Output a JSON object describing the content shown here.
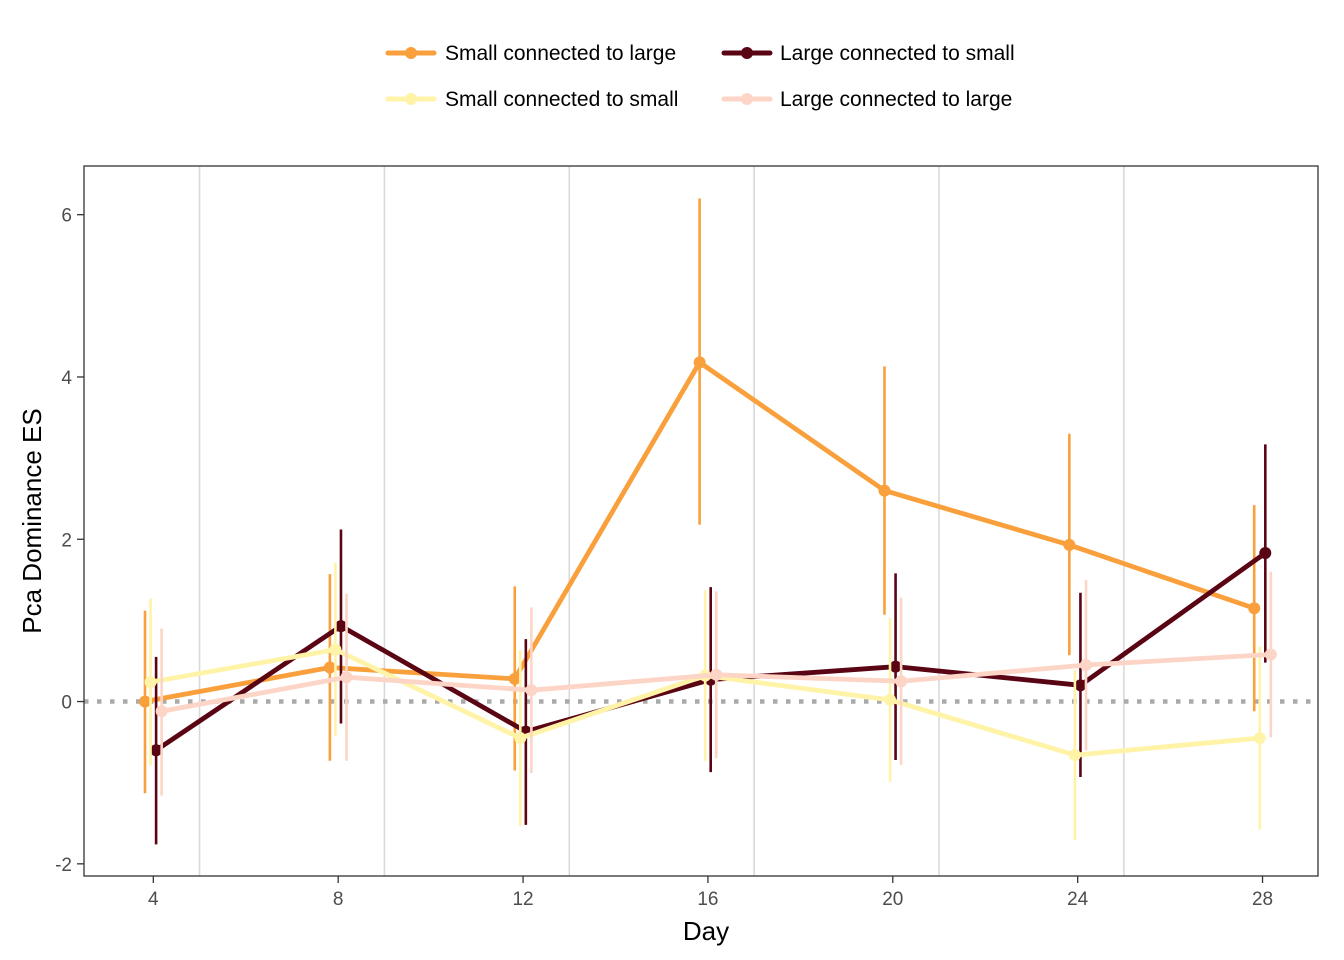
{
  "chart_data": {
    "type": "line",
    "title": "",
    "xlabel": "Day",
    "ylabel": "Pca Dominance ES",
    "x": [
      4,
      8,
      12,
      16,
      20,
      24,
      28
    ],
    "xticks": [
      "4",
      "8",
      "12",
      "16",
      "20",
      "24",
      "28"
    ],
    "yticks": [
      "-2",
      "0",
      "2",
      "4",
      "6"
    ],
    "xlim": [
      2.5,
      29.2
    ],
    "ylim": [
      -2.15,
      6.6
    ],
    "reference_line": 0,
    "vertical_separators": [
      5,
      9,
      13,
      17,
      21,
      25
    ],
    "grid": false,
    "legend_position": "top",
    "series": [
      {
        "name": "Small connected to large",
        "color": "#F9A03C",
        "offset": -0.18,
        "values": [
          0.0,
          0.42,
          0.28,
          4.18,
          2.6,
          1.93,
          1.15
        ],
        "lower": [
          -1.13,
          -0.73,
          -0.85,
          2.18,
          1.07,
          0.57,
          -0.12
        ],
        "upper": [
          1.12,
          1.57,
          1.42,
          6.2,
          4.13,
          3.3,
          2.42
        ]
      },
      {
        "name": "Large connected to small",
        "color": "#5A0514",
        "offset": 0.06,
        "values": [
          -0.6,
          0.93,
          -0.37,
          0.27,
          0.43,
          0.2,
          1.83
        ],
        "lower": [
          -1.76,
          -0.27,
          -1.52,
          -0.87,
          -0.72,
          -0.93,
          0.48
        ],
        "upper": [
          0.55,
          2.12,
          0.77,
          1.41,
          1.58,
          1.34,
          3.17
        ]
      },
      {
        "name": "Small connected to small",
        "color": "#FFF3A8",
        "offset": -0.06,
        "values": [
          0.24,
          0.64,
          -0.45,
          0.32,
          0.02,
          -0.66,
          -0.45
        ],
        "lower": [
          -0.79,
          -0.43,
          -1.53,
          -0.73,
          -0.99,
          -1.71,
          -1.58
        ],
        "upper": [
          1.27,
          1.71,
          0.63,
          1.37,
          1.03,
          0.39,
          0.68
        ]
      },
      {
        "name": "Large connected to large",
        "color": "#FCD5C7",
        "offset": 0.18,
        "values": [
          -0.12,
          0.3,
          0.14,
          0.33,
          0.25,
          0.45,
          0.58
        ],
        "lower": [
          -1.16,
          -0.73,
          -0.88,
          -0.7,
          -0.78,
          -0.6,
          -0.44
        ],
        "upper": [
          0.9,
          1.33,
          1.16,
          1.36,
          1.28,
          1.5,
          1.6
        ]
      }
    ]
  },
  "legend": {
    "items": [
      {
        "label": "Small connected to large",
        "color": "#F9A03C"
      },
      {
        "label": "Large connected to small",
        "color": "#5A0514"
      },
      {
        "label": "Small connected to small",
        "color": "#FFF3A8"
      },
      {
        "label": "Large connected to large",
        "color": "#FCD5C7"
      }
    ]
  },
  "colors": {
    "panel_border": "#333333",
    "separator": "#D9D9D9",
    "reference_line": "#AAAAAA",
    "tick_text": "#4D4D4D"
  }
}
